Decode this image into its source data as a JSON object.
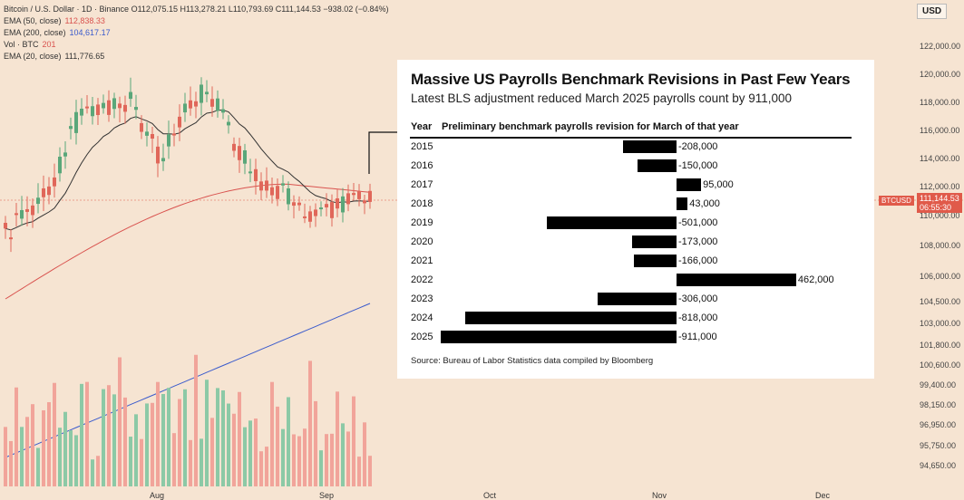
{
  "symbol_info": {
    "line1": "Bitcoin / U.S. Dollar · 1D · Binance",
    "ohlc": "O112,075.15 H113,278.21 L110,793.69 C111,144.53 −938.02 (−0.84%)",
    "indicators": [
      {
        "label": "EMA (50, close)",
        "value": "112,838.33",
        "color": "#d9534f"
      },
      {
        "label": "EMA (200, close)",
        "value": "104,617.17",
        "color": "#3b5bcc"
      },
      {
        "label": "Vol · BTC",
        "value": "201",
        "color": "#d9534f"
      },
      {
        "label": "EMA (20, close)",
        "value": "111,776.65",
        "color": "#333333"
      }
    ]
  },
  "currency_button": "USD",
  "price_axis": [
    "122,000.00",
    "120,000.00",
    "118,000.00",
    "116,000.00",
    "114,000.00",
    "112,000.00",
    "110,000.00",
    "108,000.00",
    "106,000.00",
    "104,500.00",
    "103,000.00",
    "101,800.00",
    "100,600.00",
    "99,400.00",
    "98,150.00",
    "96,950.00",
    "95,750.00",
    "94,650.00"
  ],
  "price_marker": {
    "ticker": "BTCUSD",
    "price": "111,144.53",
    "countdown": "06:55:30"
  },
  "date_axis": [
    "Aug",
    "Sep",
    "Oct",
    "Nov",
    "Dec"
  ],
  "colors": {
    "up": "#5aa77a",
    "down": "#e0675a",
    "vol_up": "#8cc9a6",
    "vol_down": "#f1a49a",
    "ema50": "#d9534f",
    "ema200": "#3b5bcc",
    "ema20": "#333333",
    "bg": "#f6e4d2"
  },
  "overlay": {
    "title": "Massive US Payrolls Benchmark Revisions in Past Few Years",
    "subtitle": "Latest BLS adjustment reduced March 2025 payrolls count by 911,000",
    "col_year": "Year",
    "col_revision": "Preliminary benchmark payrolls revision for March of that year",
    "source": "Source: Bureau of Labor Statistics data compiled by Bloomberg"
  },
  "chart_data": {
    "type": "bar",
    "title": "Massive US Payrolls Benchmark Revisions in Past Few Years",
    "subtitle": "Latest BLS adjustment reduced March 2025 payrolls count by 911,000",
    "xlabel": "Year",
    "ylabel": "Preliminary benchmark payrolls revision for March of that year",
    "categories": [
      "2015",
      "2016",
      "2017",
      "2018",
      "2019",
      "2020",
      "2021",
      "2022",
      "2023",
      "2024",
      "2025"
    ],
    "values": [
      -208000,
      -150000,
      95000,
      43000,
      -501000,
      -173000,
      -166000,
      462000,
      -306000,
      -818000,
      -911000
    ],
    "value_labels": [
      "-208,000",
      "-150,000",
      "95,000",
      "43,000",
      "-501,000",
      "-173,000",
      "-166,000",
      "462,000",
      "-306,000",
      "-818,000",
      "-911,000"
    ],
    "orientation": "horizontal",
    "grid": false
  }
}
